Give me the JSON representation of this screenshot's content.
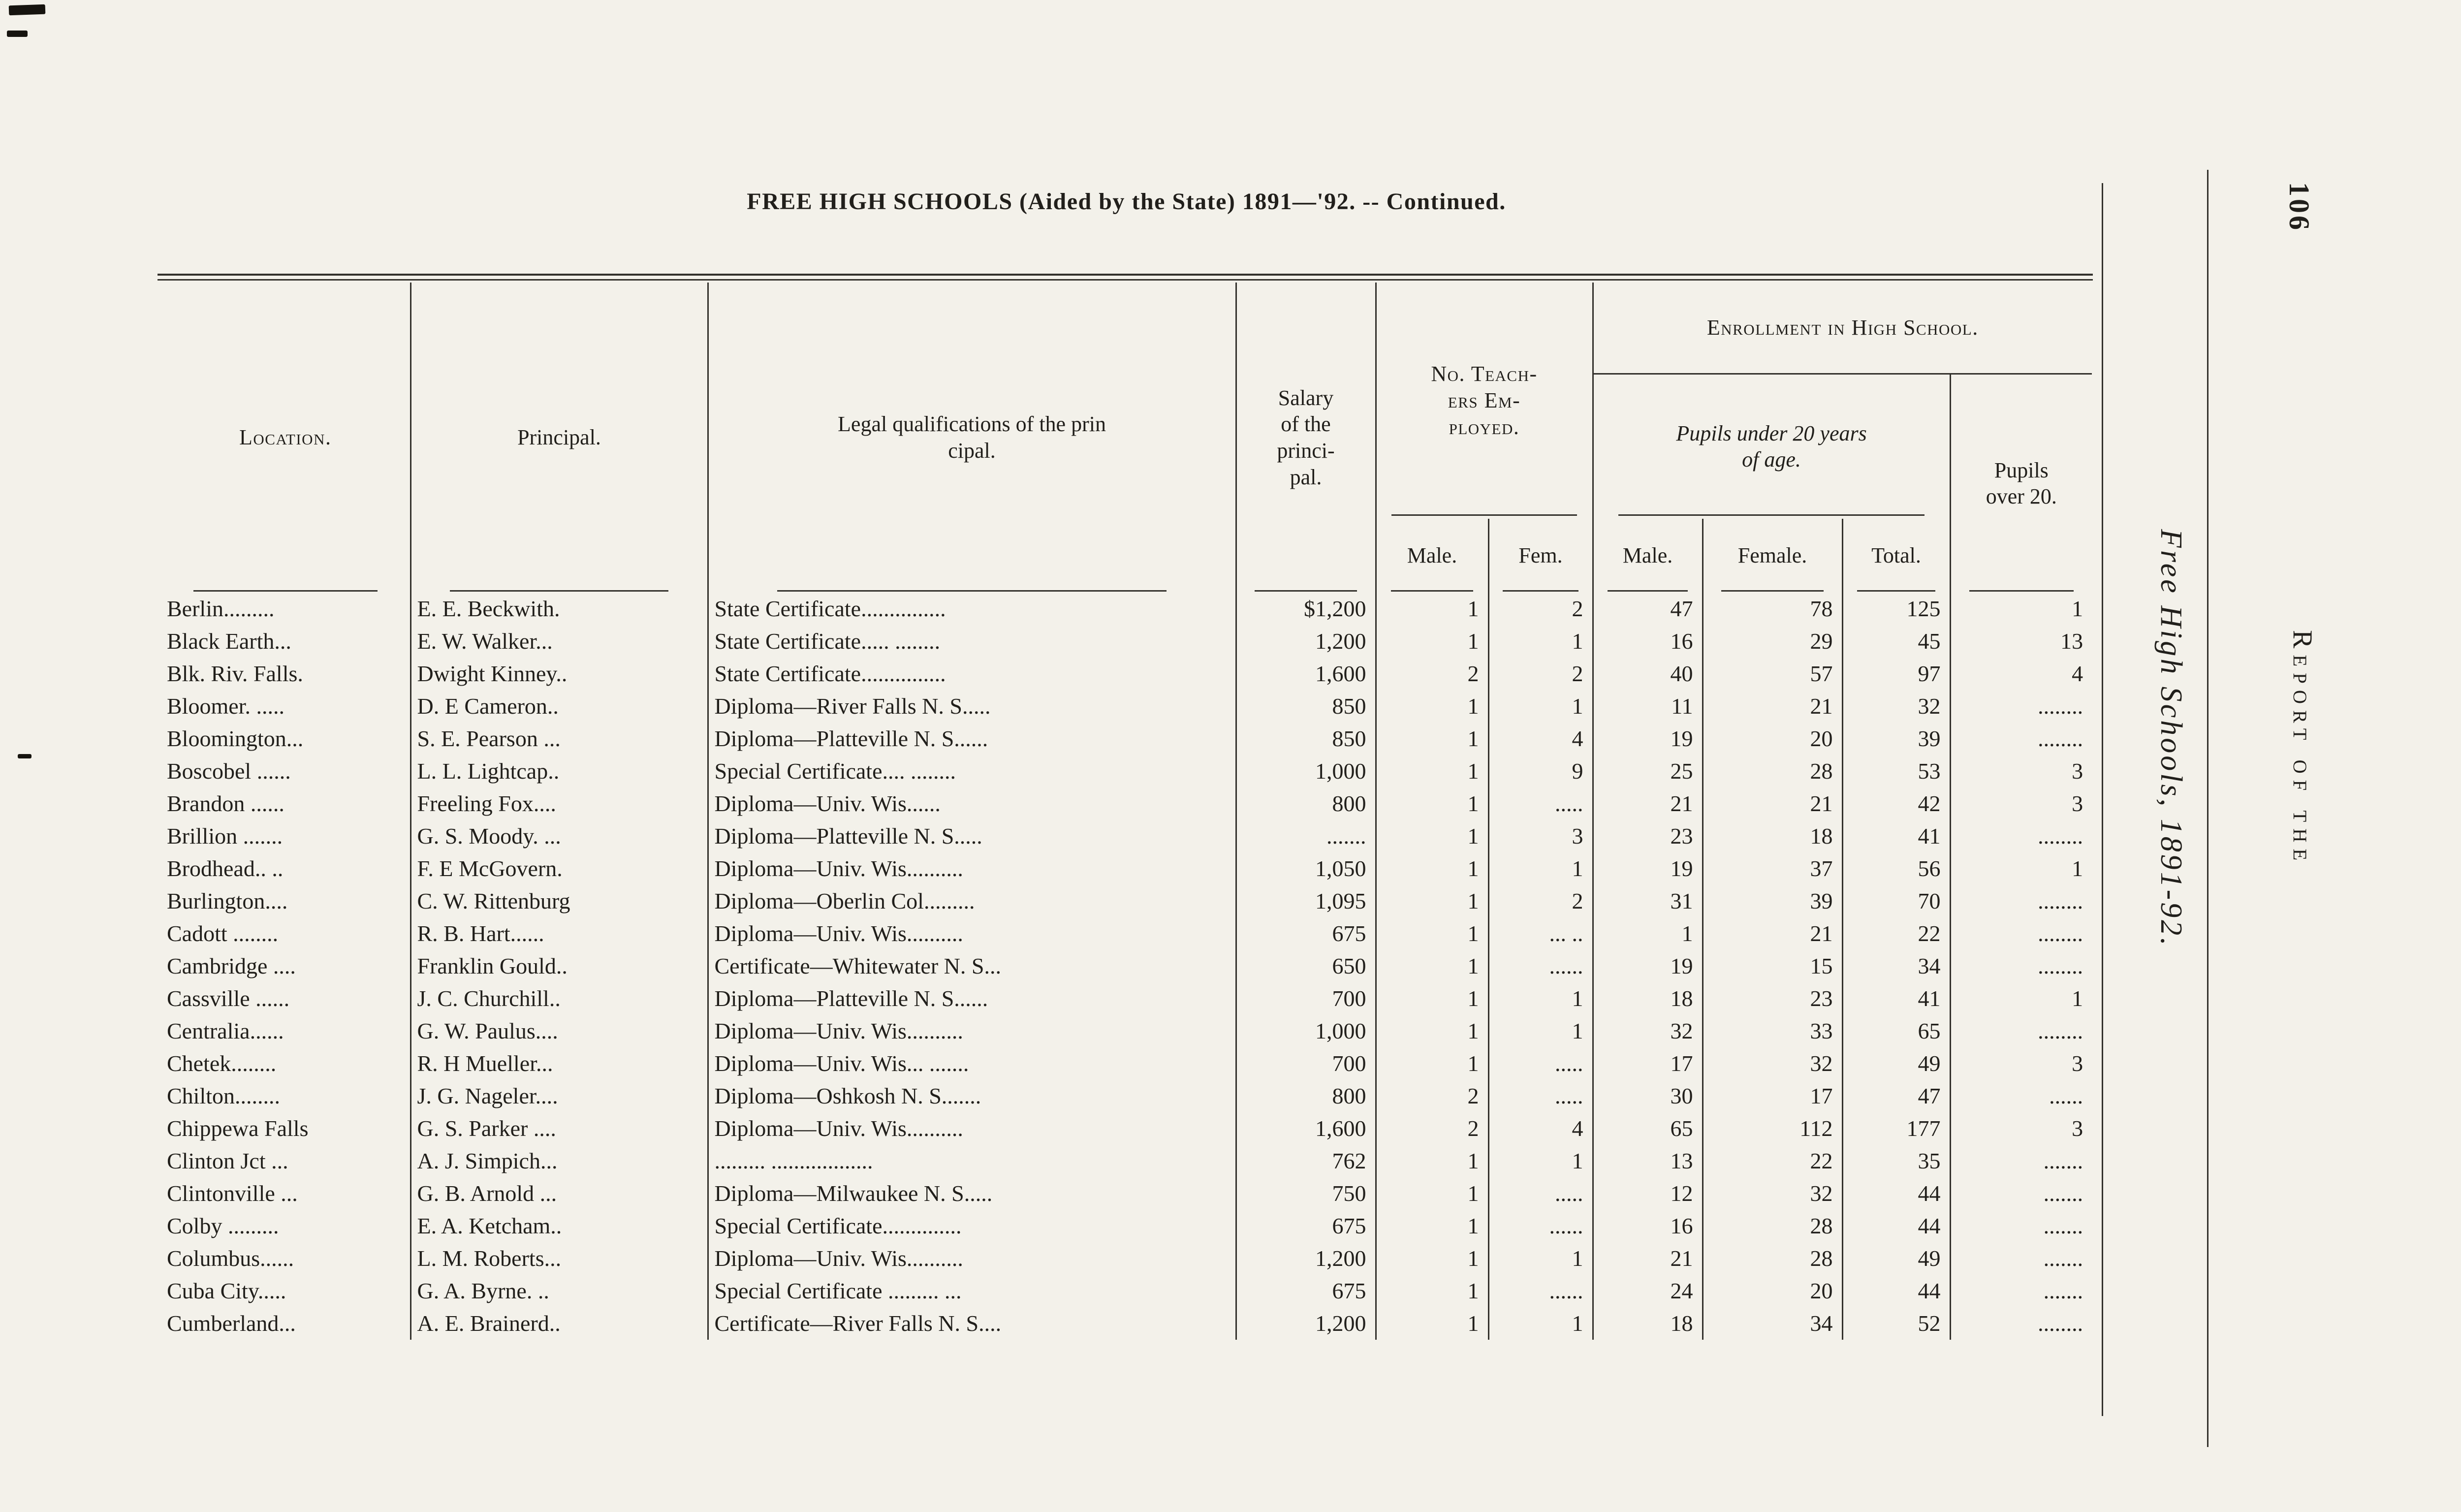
{
  "page": {
    "title": "FREE HIGH SCHOOLS (Aided by the State) 1891—'92. -- Continued.",
    "page_number": "106"
  },
  "margin": {
    "running_title": "Free High Schools, 1891-92.",
    "report_text": "Report of the"
  },
  "table": {
    "headers": {
      "location": "Location.",
      "principal": "Principal.",
      "qualifications": "Legal qualifications of the prin\ncipal.",
      "salary": "Salary\nof the\nprinci-\npal.",
      "teachers_group": "No. Teach-\ners Em-\nployed.",
      "teachers_male": "Male.",
      "teachers_fem": "Fem.",
      "enrollment_group": "Enrollment in High School.",
      "under20_group": "Pupils under 20 years\nof age.",
      "under20_male": "Male.",
      "under20_female": "Female.",
      "under20_total": "Total.",
      "over20": "Pupils\nover 20."
    },
    "rows": [
      [
        "Berlin.........",
        "E. E. Beckwith.",
        "State Certificate...............",
        "$1,200",
        "1",
        "2",
        "47",
        "78",
        "125",
        "1"
      ],
      [
        "Black Earth...",
        "E. W. Walker...",
        "State Certificate..... ........",
        "1,200",
        "1",
        "1",
        "16",
        "29",
        "45",
        "13"
      ],
      [
        "Blk. Riv. Falls.",
        "Dwight Kinney..",
        "State Certificate...............",
        "1,600",
        "2",
        "2",
        "40",
        "57",
        "97",
        "4"
      ],
      [
        "Bloomer. .....",
        "D. E Cameron..",
        "Diploma—River Falls N. S.....",
        "850",
        "1",
        "1",
        "11",
        "21",
        "32",
        "........"
      ],
      [
        "Bloomington...",
        "S. E. Pearson ...",
        "Diploma—Platteville N. S......",
        "850",
        "1",
        "4",
        "19",
        "20",
        "39",
        "........"
      ],
      [
        "Boscobel ......",
        "L. L. Lightcap..",
        "Special Certificate.... ........",
        "1,000",
        "1",
        "9",
        "25",
        "28",
        "53",
        "3"
      ],
      [
        "Brandon ......",
        "Freeling Fox....",
        "Diploma—Univ. Wis......",
        "800",
        "1",
        ".....",
        "21",
        "21",
        "42",
        "3"
      ],
      [
        "Brillion .......",
        "G. S. Moody. ...",
        "Diploma—Platteville N. S.....",
        ".......",
        "1",
        "3",
        "23",
        "18",
        "41",
        "........"
      ],
      [
        "Brodhead.. ..",
        "F. E McGovern.",
        "Diploma—Univ. Wis..........",
        "1,050",
        "1",
        "1",
        "19",
        "37",
        "56",
        "1"
      ],
      [
        "Burlington....",
        "C. W. Rittenburg",
        "Diploma—Oberlin Col.........",
        "1,095",
        "1",
        "2",
        "31",
        "39",
        "70",
        "........"
      ],
      [
        "Cadott ........",
        "R. B. Hart......",
        "Diploma—Univ. Wis..........",
        "675",
        "1",
        "... ..",
        "1",
        "21",
        "22",
        "........"
      ],
      [
        "Cambridge ....",
        "Franklin Gould..",
        "Certificate—Whitewater N. S...",
        "650",
        "1",
        "......",
        "19",
        "15",
        "34",
        "........"
      ],
      [
        "Cassville ......",
        "J. C. Churchill..",
        "Diploma—Platteville N. S......",
        "700",
        "1",
        "1",
        "18",
        "23",
        "41",
        "1"
      ],
      [
        "Centralia......",
        "G. W. Paulus....",
        "Diploma—Univ. Wis..........",
        "1,000",
        "1",
        "1",
        "32",
        "33",
        "65",
        "........"
      ],
      [
        "Chetek........",
        "R. H Mueller...",
        "Diploma—Univ. Wis... .......",
        "700",
        "1",
        ".....",
        "17",
        "32",
        "49",
        "3"
      ],
      [
        "Chilton........",
        "J. G. Nageler....",
        "Diploma—Oshkosh N. S.......",
        "800",
        "2",
        ".....",
        "30",
        "17",
        "47",
        "......"
      ],
      [
        "Chippewa Falls",
        "G. S. Parker ....",
        "Diploma—Univ. Wis..........",
        "1,600",
        "2",
        "4",
        "65",
        "112",
        "177",
        "3"
      ],
      [
        "Clinton Jct ...",
        "A. J. Simpich...",
        "......... ..................",
        "762",
        "1",
        "1",
        "13",
        "22",
        "35",
        "......."
      ],
      [
        "Clintonville ...",
        "G. B. Arnold ...",
        "Diploma—Milwaukee N. S.....",
        "750",
        "1",
        ".....",
        "12",
        "32",
        "44",
        "......."
      ],
      [
        "Colby .........",
        "E. A. Ketcham..",
        "Special Certificate..............",
        "675",
        "1",
        "......",
        "16",
        "28",
        "44",
        "......."
      ],
      [
        "Columbus......",
        "L. M. Roberts...",
        "Diploma—Univ. Wis..........",
        "1,200",
        "1",
        "1",
        "21",
        "28",
        "49",
        "......."
      ],
      [
        "Cuba City.....",
        "G. A. Byrne. ..",
        "Special Certificate ......... ...",
        "675",
        "1",
        "......",
        "24",
        "20",
        "44",
        "......."
      ],
      [
        "Cumberland...",
        "A. E. Brainerd..",
        "Certificate—River Falls N. S....",
        "1,200",
        "1",
        "1",
        "18",
        "34",
        "52",
        "........"
      ]
    ]
  }
}
